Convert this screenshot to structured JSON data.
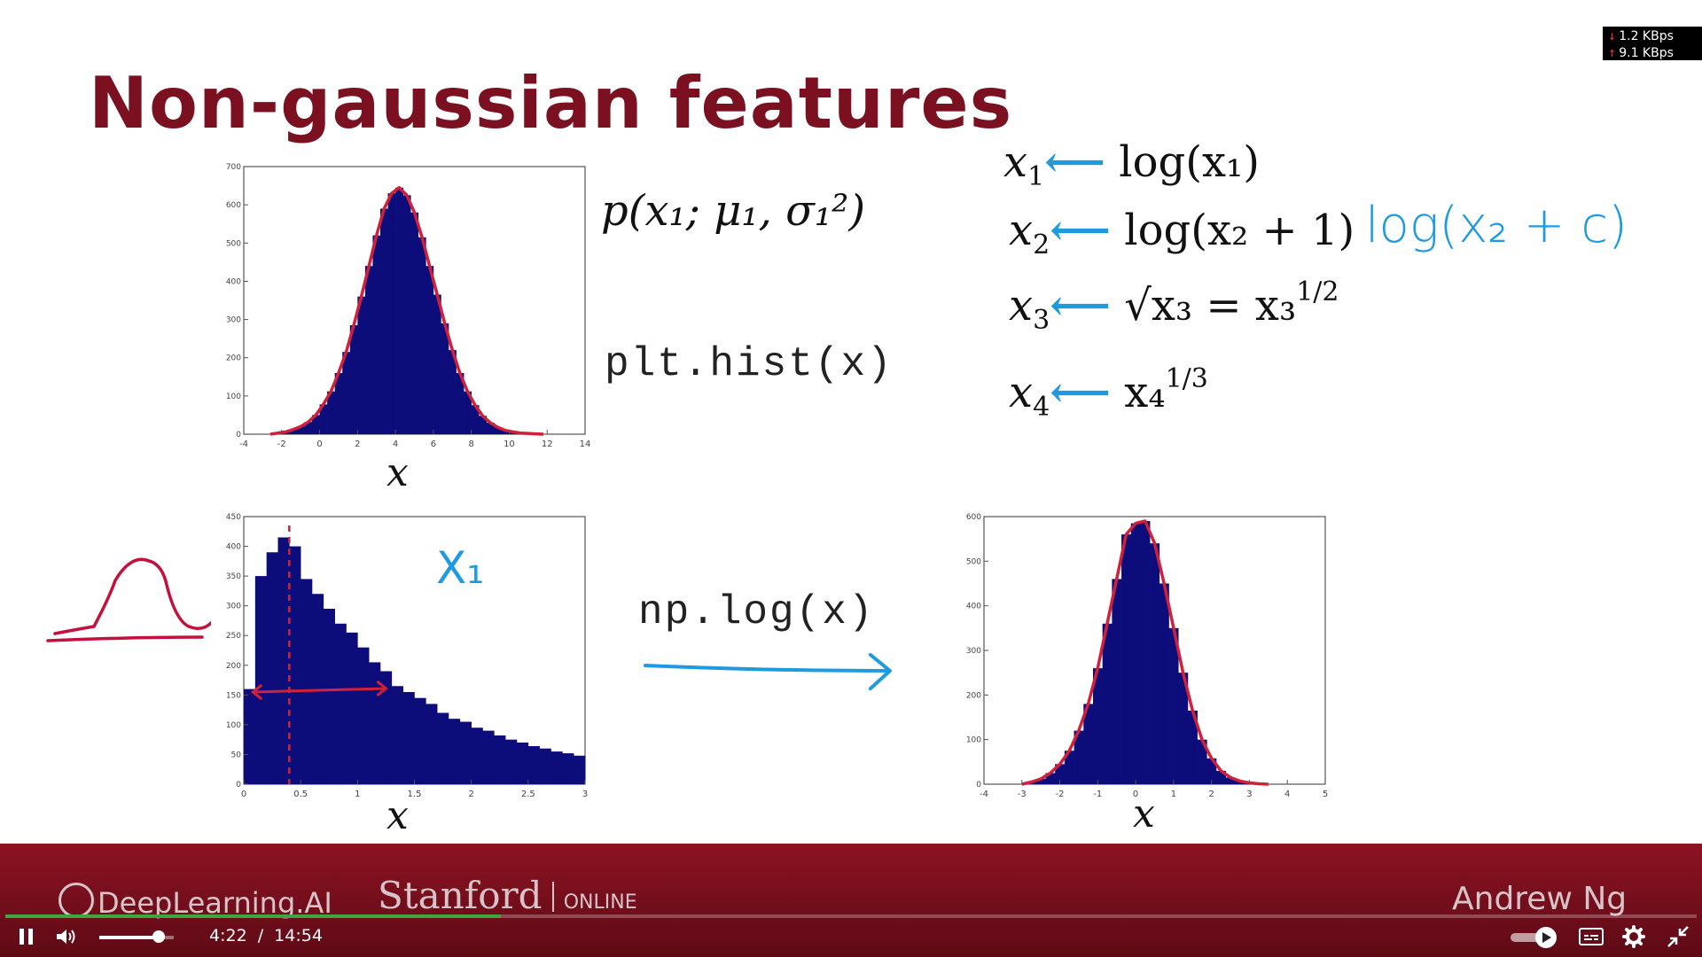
{
  "slide": {
    "title": "Non-gaussian features",
    "net_stats": {
      "down": "1.2 KBps",
      "up": "9.1 KBps"
    },
    "formula_density": "p(x₁; μ₁, σ₁²)",
    "code_hist": "plt.hist(x)",
    "code_log": "np.log(x)",
    "transforms": [
      {
        "lhs": "x",
        "sub": "1",
        "rhs": "log(x₁)"
      },
      {
        "lhs": "x",
        "sub": "2",
        "rhs": "log(x₂ + 1)"
      },
      {
        "lhs": "x",
        "sub": "3",
        "rhs": "√x₃ = x₃",
        "exp": "1/2"
      },
      {
        "lhs": "x",
        "sub": "4",
        "rhs": "x₄",
        "exp": "1/3"
      }
    ],
    "handwritten_log": "log(x₂ + c)",
    "handwritten_x1": "X₁",
    "axis_x_label": "x",
    "colors": {
      "title": "#7a1020",
      "bars": "#0c0c7a",
      "fit": "#d0203a",
      "ink_blue": "#1e9be0",
      "banner": "#8c1322"
    }
  },
  "chart_data": [
    {
      "type": "bar",
      "name": "gaussian-histogram",
      "xlabel": "x",
      "xlim": [
        -4,
        14
      ],
      "ylim": [
        0,
        700
      ],
      "xticks": [
        -4,
        -2,
        0,
        2,
        4,
        6,
        8,
        10,
        12,
        14
      ],
      "yticks": [
        0,
        100,
        200,
        300,
        400,
        500,
        600,
        700
      ],
      "fit_curve": true,
      "bins_x": [
        -2.2,
        -1.8,
        -1.4,
        -1.0,
        -0.6,
        -0.2,
        0.2,
        0.6,
        1.0,
        1.4,
        1.8,
        2.2,
        2.6,
        3.0,
        3.4,
        3.8,
        4.2,
        4.6,
        5.0,
        5.4,
        5.8,
        6.2,
        6.6,
        7.0,
        7.4,
        7.8,
        8.2,
        8.6,
        9.0,
        9.4,
        9.8,
        10.2,
        10.6,
        11.0,
        11.4
      ],
      "values": [
        3,
        6,
        12,
        20,
        32,
        50,
        78,
        112,
        160,
        215,
        285,
        360,
        440,
        520,
        590,
        630,
        645,
        625,
        580,
        515,
        440,
        365,
        290,
        220,
        160,
        112,
        76,
        48,
        30,
        18,
        10,
        6,
        3,
        2,
        1
      ]
    },
    {
      "type": "bar",
      "name": "skewed-histogram",
      "xlabel": "x",
      "xlim": [
        0,
        3
      ],
      "ylim": [
        0,
        450
      ],
      "xticks": [
        0,
        0.5,
        1,
        1.5,
        2,
        2.5,
        3
      ],
      "xtick_labels": [
        "0",
        "0.5",
        "1",
        "1.5",
        "2",
        "2.5",
        "3"
      ],
      "yticks": [
        0,
        50,
        100,
        150,
        200,
        250,
        300,
        350,
        400,
        450
      ],
      "bins_x": [
        0.05,
        0.15,
        0.25,
        0.35,
        0.45,
        0.55,
        0.65,
        0.75,
        0.85,
        0.95,
        1.05,
        1.15,
        1.25,
        1.35,
        1.45,
        1.55,
        1.65,
        1.75,
        1.85,
        1.95,
        2.05,
        2.15,
        2.25,
        2.35,
        2.45,
        2.55,
        2.65,
        2.75,
        2.85,
        2.95
      ],
      "values": [
        160,
        350,
        390,
        415,
        400,
        345,
        320,
        295,
        270,
        255,
        230,
        205,
        190,
        165,
        155,
        145,
        135,
        120,
        110,
        105,
        95,
        90,
        82,
        75,
        70,
        64,
        60,
        55,
        52,
        48
      ]
    },
    {
      "type": "bar",
      "name": "log-transformed-histogram",
      "xlabel": "x",
      "xlim": [
        -4,
        5
      ],
      "ylim": [
        0,
        600
      ],
      "xticks": [
        -4,
        -3,
        -2,
        -1,
        0,
        1,
        2,
        3,
        4,
        5
      ],
      "yticks": [
        0,
        100,
        200,
        300,
        400,
        500,
        600
      ],
      "fit_curve": true,
      "bins_x": [
        -2.75,
        -2.5,
        -2.25,
        -2.0,
        -1.75,
        -1.5,
        -1.25,
        -1.0,
        -0.75,
        -0.5,
        -0.25,
        0.0,
        0.25,
        0.5,
        0.75,
        1.0,
        1.25,
        1.5,
        1.75,
        2.0,
        2.25,
        2.5,
        2.75,
        3.0,
        3.25
      ],
      "values": [
        5,
        12,
        25,
        45,
        75,
        120,
        180,
        260,
        360,
        460,
        560,
        585,
        590,
        540,
        450,
        350,
        250,
        165,
        100,
        58,
        30,
        15,
        7,
        3,
        1
      ]
    }
  ],
  "player": {
    "brand_left": "DeepLearning.AI",
    "brand_mid": "Stanford",
    "brand_mid_sub": "ONLINE",
    "brand_right": "Andrew Ng",
    "current_time": "4:22",
    "separator": "/",
    "duration": "14:54",
    "progress_fraction": 0.293,
    "volume_fraction": 0.8,
    "icons": [
      "pause-icon",
      "volume-icon",
      "autoplay-toggle-icon",
      "captions-icon",
      "settings-icon",
      "exit-fullscreen-icon"
    ]
  }
}
